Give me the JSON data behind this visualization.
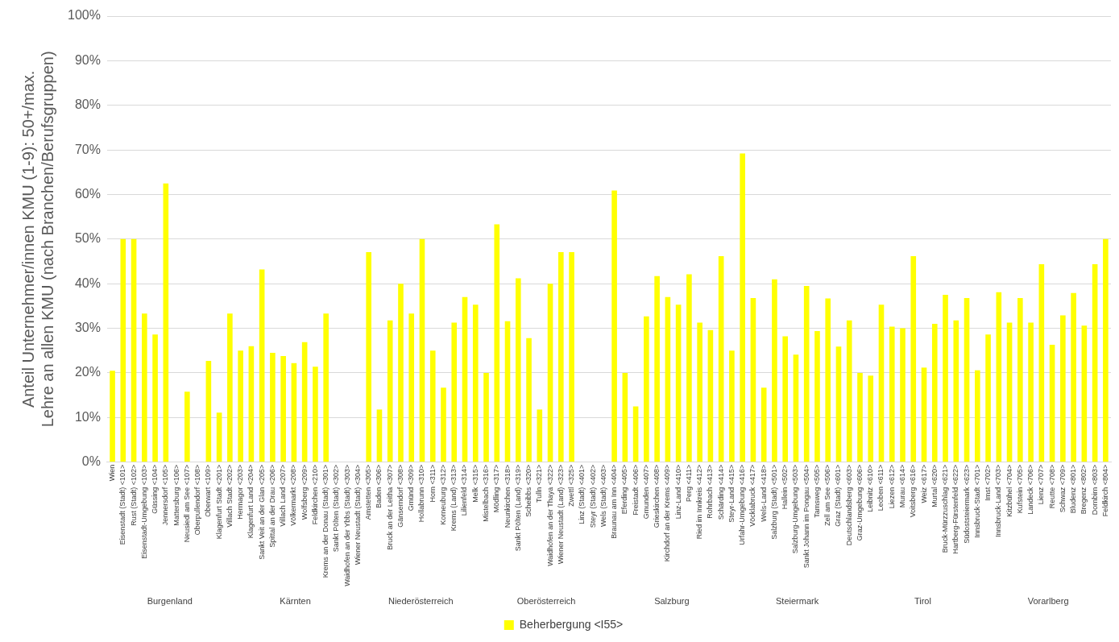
{
  "chart_data": {
    "type": "bar",
    "ylabel": "Anteil Unternehmer/innen KMU (1-9): 50+/max. Lehre an allen KMU (nach Branchen/Berufsgruppen)",
    "categories": [
      "Wien",
      "Eisenstadt (Stadt) <101>",
      "Rust (Stadt) <102>",
      "Eisenstadt-Umgebung <103>",
      "Güssing <104>",
      "Jennersdorf <105>",
      "Mattersburg <106>",
      "Neusiedl am See <107>",
      "Oberpullendorf <108>",
      "Oberwart <109>",
      "Klagenfurt Stadt <201>",
      "Villach Stadt <202>",
      "Hermagor <203>",
      "Klagenfurt Land <204>",
      "Sankt Veit an der Glan <205>",
      "Spittal an der Drau <206>",
      "Villach Land <207>",
      "Völkermarkt <208>",
      "Wolfsberg <209>",
      "Feldkirchen <210>",
      "Krems an der Donau (Stadt) <301>",
      "Sankt Pölten (Stadt) <302>",
      "Waidhofen an der Ybbs (Stadt) <303>",
      "Wiener Neustadt (Stadt) <304>",
      "Amstetten <305>",
      "Baden <306>",
      "Bruck an der Leitha <307>",
      "Gänserndorf <308>",
      "Gmünd <309>",
      "Hollabrunn <310>",
      "Horn <311>",
      "Korneuburg <312>",
      "Krems (Land) <313>",
      "Lilienfeld <314>",
      "Melk <315>",
      "Mistelbach <316>",
      "Mödling <317>",
      "Neunkirchen <318>",
      "Sankt Pölten (Land) <319>",
      "Scheibbs <320>",
      "Tulln <321>",
      "Waidhofen an der Thaya <322>",
      "Wiener Neustadt (Land) <323>",
      "Zwettl <325>",
      "Linz (Stadt) <401>",
      "Steyr (Stadt) <402>",
      "Wels (Stadt) <403>",
      "Braunau am Inn <404>",
      "Eferding <405>",
      "Freistadt <406>",
      "Gmunden <407>",
      "Grieskirchen <408>",
      "Kirchdorf an der Krems <409>",
      "Linz-Land <410>",
      "Perg <411>",
      "Ried im Innkreis <412>",
      "Rohrbach <413>",
      "Schärding <414>",
      "Steyr-Land <415>",
      "Urfahr-Umgebung <416>",
      "Vöcklabruck <417>",
      "Wels-Land <418>",
      "Salzburg (Stadt) <501>",
      "Hallein <502>",
      "Salzburg-Umgebung <503>",
      "Sankt Johann im Pongau <504>",
      "Tamsweg <505>",
      "Zell am See <506>",
      "Graz (Stadt) <601>",
      "Deutschlandsberg <603>",
      "Graz-Umgebung <606>",
      "Leibnitz <610>",
      "Leoben <611>",
      "Liezen <612>",
      "Murau <614>",
      "Voitsberg <616>",
      "Weiz <617>",
      "Murtal <620>",
      "Bruck-Mürzzuschlag <621>",
      "Hartberg-Fürstenfeld <622>",
      "Südoststeiermark <623>",
      "Innsbruck-Stadt <701>",
      "Imst <702>",
      "Innsbruck-Land <703>",
      "Kitzbühel <704>",
      "Kufstein <705>",
      "Landeck <706>",
      "Lienz <707>",
      "Reutte <708>",
      "Schwaz <709>",
      "Bludenz <801>",
      "Bregenz <802>",
      "Dornbirn <803>",
      "Feldkirch <804>"
    ],
    "series": [
      {
        "name": "Beherbergung <I55>",
        "color": "#ffff00",
        "values": [
          20.5,
          50,
          50,
          33.3,
          28.6,
          62.5,
          0,
          15.8,
          0,
          22.7,
          11.1,
          33.3,
          25,
          26,
          43.2,
          24.5,
          23.8,
          22.2,
          26.9,
          21.4,
          33.3,
          0,
          0,
          0,
          47.1,
          11.8,
          31.8,
          40,
          33.3,
          50,
          25,
          16.7,
          31.3,
          37,
          35.3,
          20,
          53.3,
          31.6,
          41.2,
          27.8,
          11.8,
          40,
          47.1,
          47.1,
          0,
          0,
          0,
          60.9,
          20,
          12.5,
          32.7,
          41.7,
          37,
          35.3,
          42.1,
          31.3,
          29.6,
          46.2,
          25,
          69.2,
          36.8,
          16.7,
          41,
          28.2,
          24.1,
          39.5,
          29.4,
          36.7,
          25.9,
          31.8,
          20,
          19.4,
          35.3,
          30.4,
          30,
          46.2,
          21.2,
          31,
          37.5,
          31.8,
          36.8,
          20.6,
          28.6,
          38.1,
          31.3,
          36.8,
          31.3,
          44.4,
          26.3,
          32.9,
          37.9,
          30.6,
          44.4,
          50
        ]
      }
    ],
    "ylim": [
      0,
      100
    ],
    "yticks": [
      {
        "value": 0,
        "label": "0%"
      },
      {
        "value": 10,
        "label": "10%"
      },
      {
        "value": 20,
        "label": "20%"
      },
      {
        "value": 30,
        "label": "30%"
      },
      {
        "value": 40,
        "label": "40%"
      },
      {
        "value": 50,
        "label": "50%"
      },
      {
        "value": 60,
        "label": "60%"
      },
      {
        "value": 70,
        "label": "70%"
      },
      {
        "value": 80,
        "label": "80%"
      },
      {
        "value": 90,
        "label": "90%"
      },
      {
        "value": 100,
        "label": "100%"
      }
    ],
    "annotations": [
      "Burgenland",
      "Kärnten",
      "Niederösterreich",
      "Oberösterreich",
      "Salzburg",
      "Steiermark",
      "Tirol",
      "Vorarlberg"
    ],
    "grid": "y",
    "legend": "bottom"
  }
}
